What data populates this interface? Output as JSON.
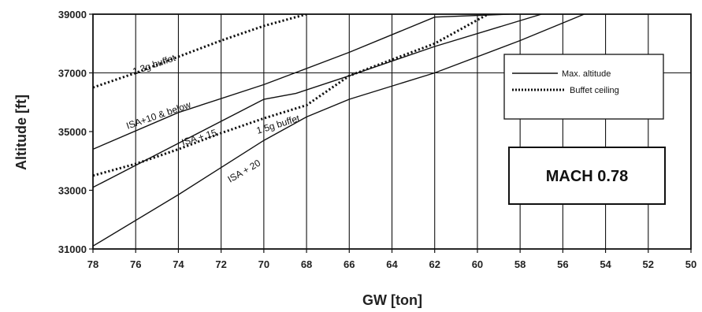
{
  "chart_data": {
    "type": "line",
    "xlabel": "GW [ton]",
    "ylabel": "Altitude [ft]",
    "xlim": [
      78,
      50
    ],
    "ylim": [
      31000,
      39000
    ],
    "x_ticks": [
      78,
      76,
      74,
      72,
      70,
      68,
      66,
      64,
      62,
      60,
      58,
      56,
      54,
      52,
      50
    ],
    "y_ticks": [
      31000,
      33000,
      35000,
      37000,
      39000
    ],
    "grid": "vertical lines every 2 ton; horizontal line at 37000",
    "legend": {
      "position": "right",
      "entries": [
        {
          "label": "Max. altitude",
          "style": "solid"
        },
        {
          "label": "Buffet ceiling",
          "style": "dotted"
        }
      ]
    },
    "boxed_label": "MACH 0.78",
    "series": [
      {
        "name": "ISA+10 & below",
        "style": "solid",
        "x": [
          78,
          74,
          70,
          66,
          62,
          58.5
        ],
        "y": [
          34400,
          35650,
          36600,
          37700,
          38900,
          39000
        ]
      },
      {
        "name": "ISA+15",
        "style": "solid",
        "x": [
          78,
          74,
          70,
          68.5,
          66,
          62,
          57
        ],
        "y": [
          33100,
          34600,
          36100,
          36300,
          36900,
          37900,
          39000
        ]
      },
      {
        "name": "ISA+20",
        "style": "solid",
        "x": [
          78,
          74,
          70,
          68,
          66,
          62,
          58,
          55
        ],
        "y": [
          31100,
          32850,
          34700,
          35500,
          36100,
          37000,
          38100,
          39000
        ]
      },
      {
        "name": "1.3g buffet",
        "style": "dotted",
        "x": [
          78,
          76,
          74,
          72,
          70,
          68
        ],
        "y": [
          36500,
          37000,
          37550,
          38100,
          38600,
          39000
        ]
      },
      {
        "name": "1.5g buffet",
        "style": "dotted",
        "x": [
          78,
          76,
          74,
          72,
          70,
          68,
          66,
          64,
          62,
          60,
          59.5
        ],
        "y": [
          33500,
          33900,
          34400,
          34950,
          35450,
          35900,
          36900,
          37450,
          38000,
          38800,
          39000
        ]
      }
    ],
    "annotations": [
      "1.3g buffet",
      "ISA+10 & below",
      "ISA + 15",
      "1.5g buffet",
      "ISA + 20"
    ]
  }
}
